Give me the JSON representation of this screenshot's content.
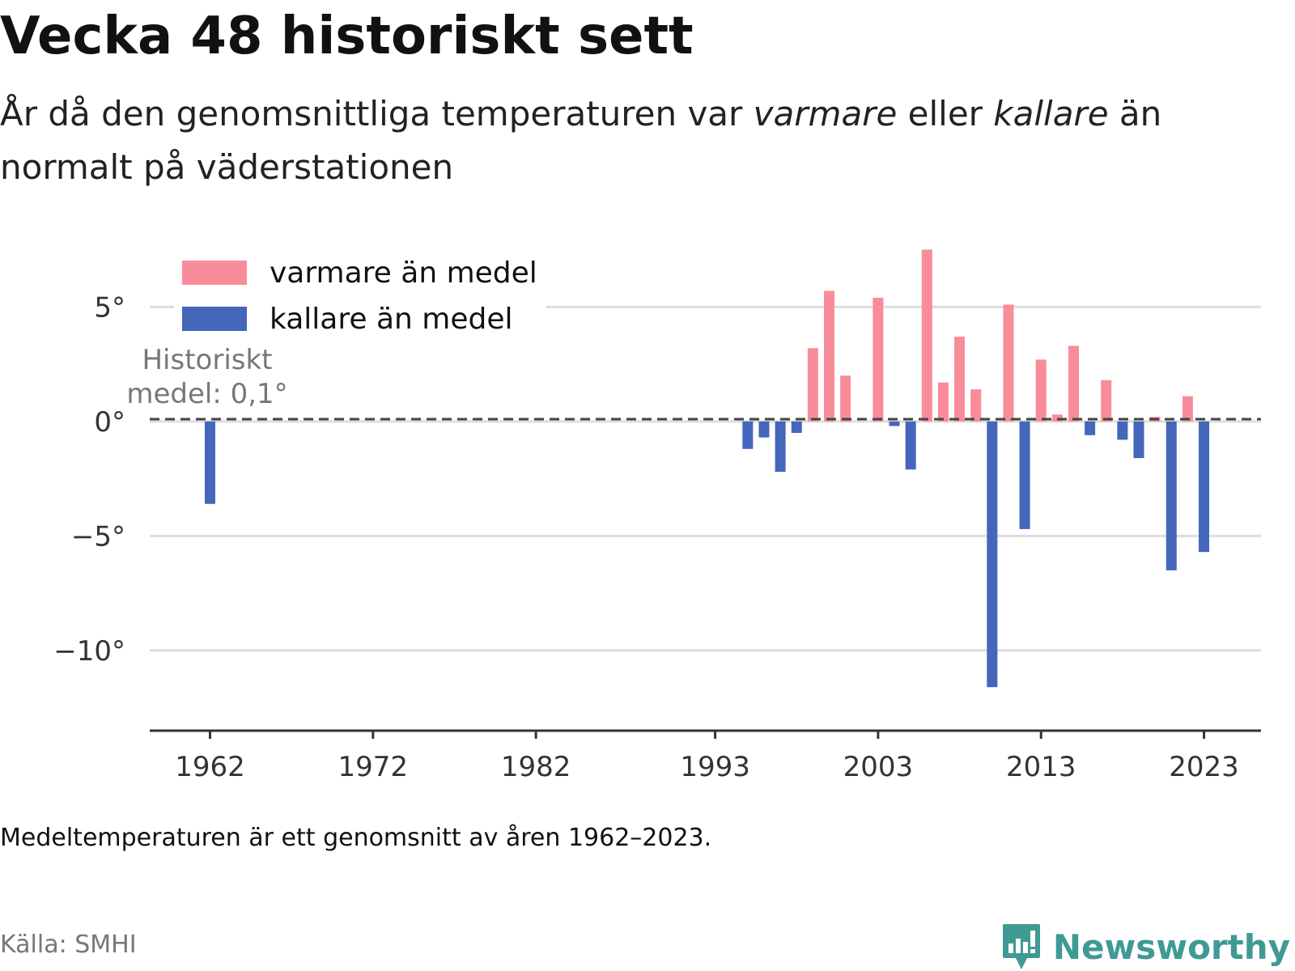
{
  "title": "Vecka 48 historiskt sett",
  "subtitle": {
    "part1": "År då den genomsnittliga temperaturen var ",
    "warm_word": "varmare",
    "part2": " eller ",
    "cold_word": "kallare",
    "part3": " än normalt på väderstationen"
  },
  "footnote": "Medeltemperaturen är ett genomsnitt av åren 1962–2023.",
  "source": "Källa: SMHI",
  "brand": {
    "name": "Newsworthy",
    "icon": "newsworthy-logo-icon"
  },
  "chart_data": {
    "type": "bar",
    "baseline": 0.1,
    "ylim": [
      -13.5,
      7.8
    ],
    "xlim": [
      1958.3,
      2026.5
    ],
    "yticks": [
      {
        "value": 5,
        "label": "5°"
      },
      {
        "value": 0,
        "label": "0°"
      },
      {
        "value": -5,
        "label": "−5°"
      },
      {
        "value": -10,
        "label": "−10°"
      }
    ],
    "xticks": [
      {
        "value": 1962,
        "label": "1962"
      },
      {
        "value": 1972,
        "label": "1972"
      },
      {
        "value": 1982,
        "label": "1982"
      },
      {
        "value": 1993,
        "label": "1993"
      },
      {
        "value": 2003,
        "label": "2003"
      },
      {
        "value": 2013,
        "label": "2013"
      },
      {
        "value": 2023,
        "label": "2023"
      }
    ],
    "legend": {
      "position": "top-left",
      "items": [
        {
          "key": "warm",
          "label": "varmare än medel",
          "color": "#f98c9a"
        },
        {
          "key": "cold",
          "label": "kallare än medel",
          "color": "#4466bb"
        }
      ]
    },
    "annotation": {
      "line1": "Historiskt",
      "line2": "medel: 0,1°"
    },
    "colors": {
      "warm": "#f98c9a",
      "cold": "#4466bb",
      "grid": "#dddddd",
      "axis": "#333333",
      "mean_line": "#444444"
    },
    "bars": [
      {
        "year": 1962,
        "value": -3.6
      },
      {
        "year": 1995,
        "value": -1.2
      },
      {
        "year": 1996,
        "value": -0.7
      },
      {
        "year": 1997,
        "value": -2.2
      },
      {
        "year": 1998,
        "value": -0.5
      },
      {
        "year": 1999,
        "value": 3.2
      },
      {
        "year": 2000,
        "value": 5.7
      },
      {
        "year": 2001,
        "value": 2.0
      },
      {
        "year": 2003,
        "value": 5.4
      },
      {
        "year": 2004,
        "value": -0.2
      },
      {
        "year": 2005,
        "value": -2.1
      },
      {
        "year": 2006,
        "value": 7.5
      },
      {
        "year": 2007,
        "value": 1.7
      },
      {
        "year": 2008,
        "value": 3.7
      },
      {
        "year": 2009,
        "value": 1.4
      },
      {
        "year": 2010,
        "value": -11.6
      },
      {
        "year": 2011,
        "value": 5.1
      },
      {
        "year": 2012,
        "value": -4.7
      },
      {
        "year": 2013,
        "value": 2.7
      },
      {
        "year": 2014,
        "value": 0.3
      },
      {
        "year": 2015,
        "value": 3.3
      },
      {
        "year": 2016,
        "value": -0.6
      },
      {
        "year": 2017,
        "value": 1.8
      },
      {
        "year": 2018,
        "value": -0.8
      },
      {
        "year": 2019,
        "value": -1.6
      },
      {
        "year": 2020,
        "value": 0.2
      },
      {
        "year": 2021,
        "value": -6.5
      },
      {
        "year": 2022,
        "value": 1.1
      },
      {
        "year": 2023,
        "value": -5.7
      }
    ]
  }
}
